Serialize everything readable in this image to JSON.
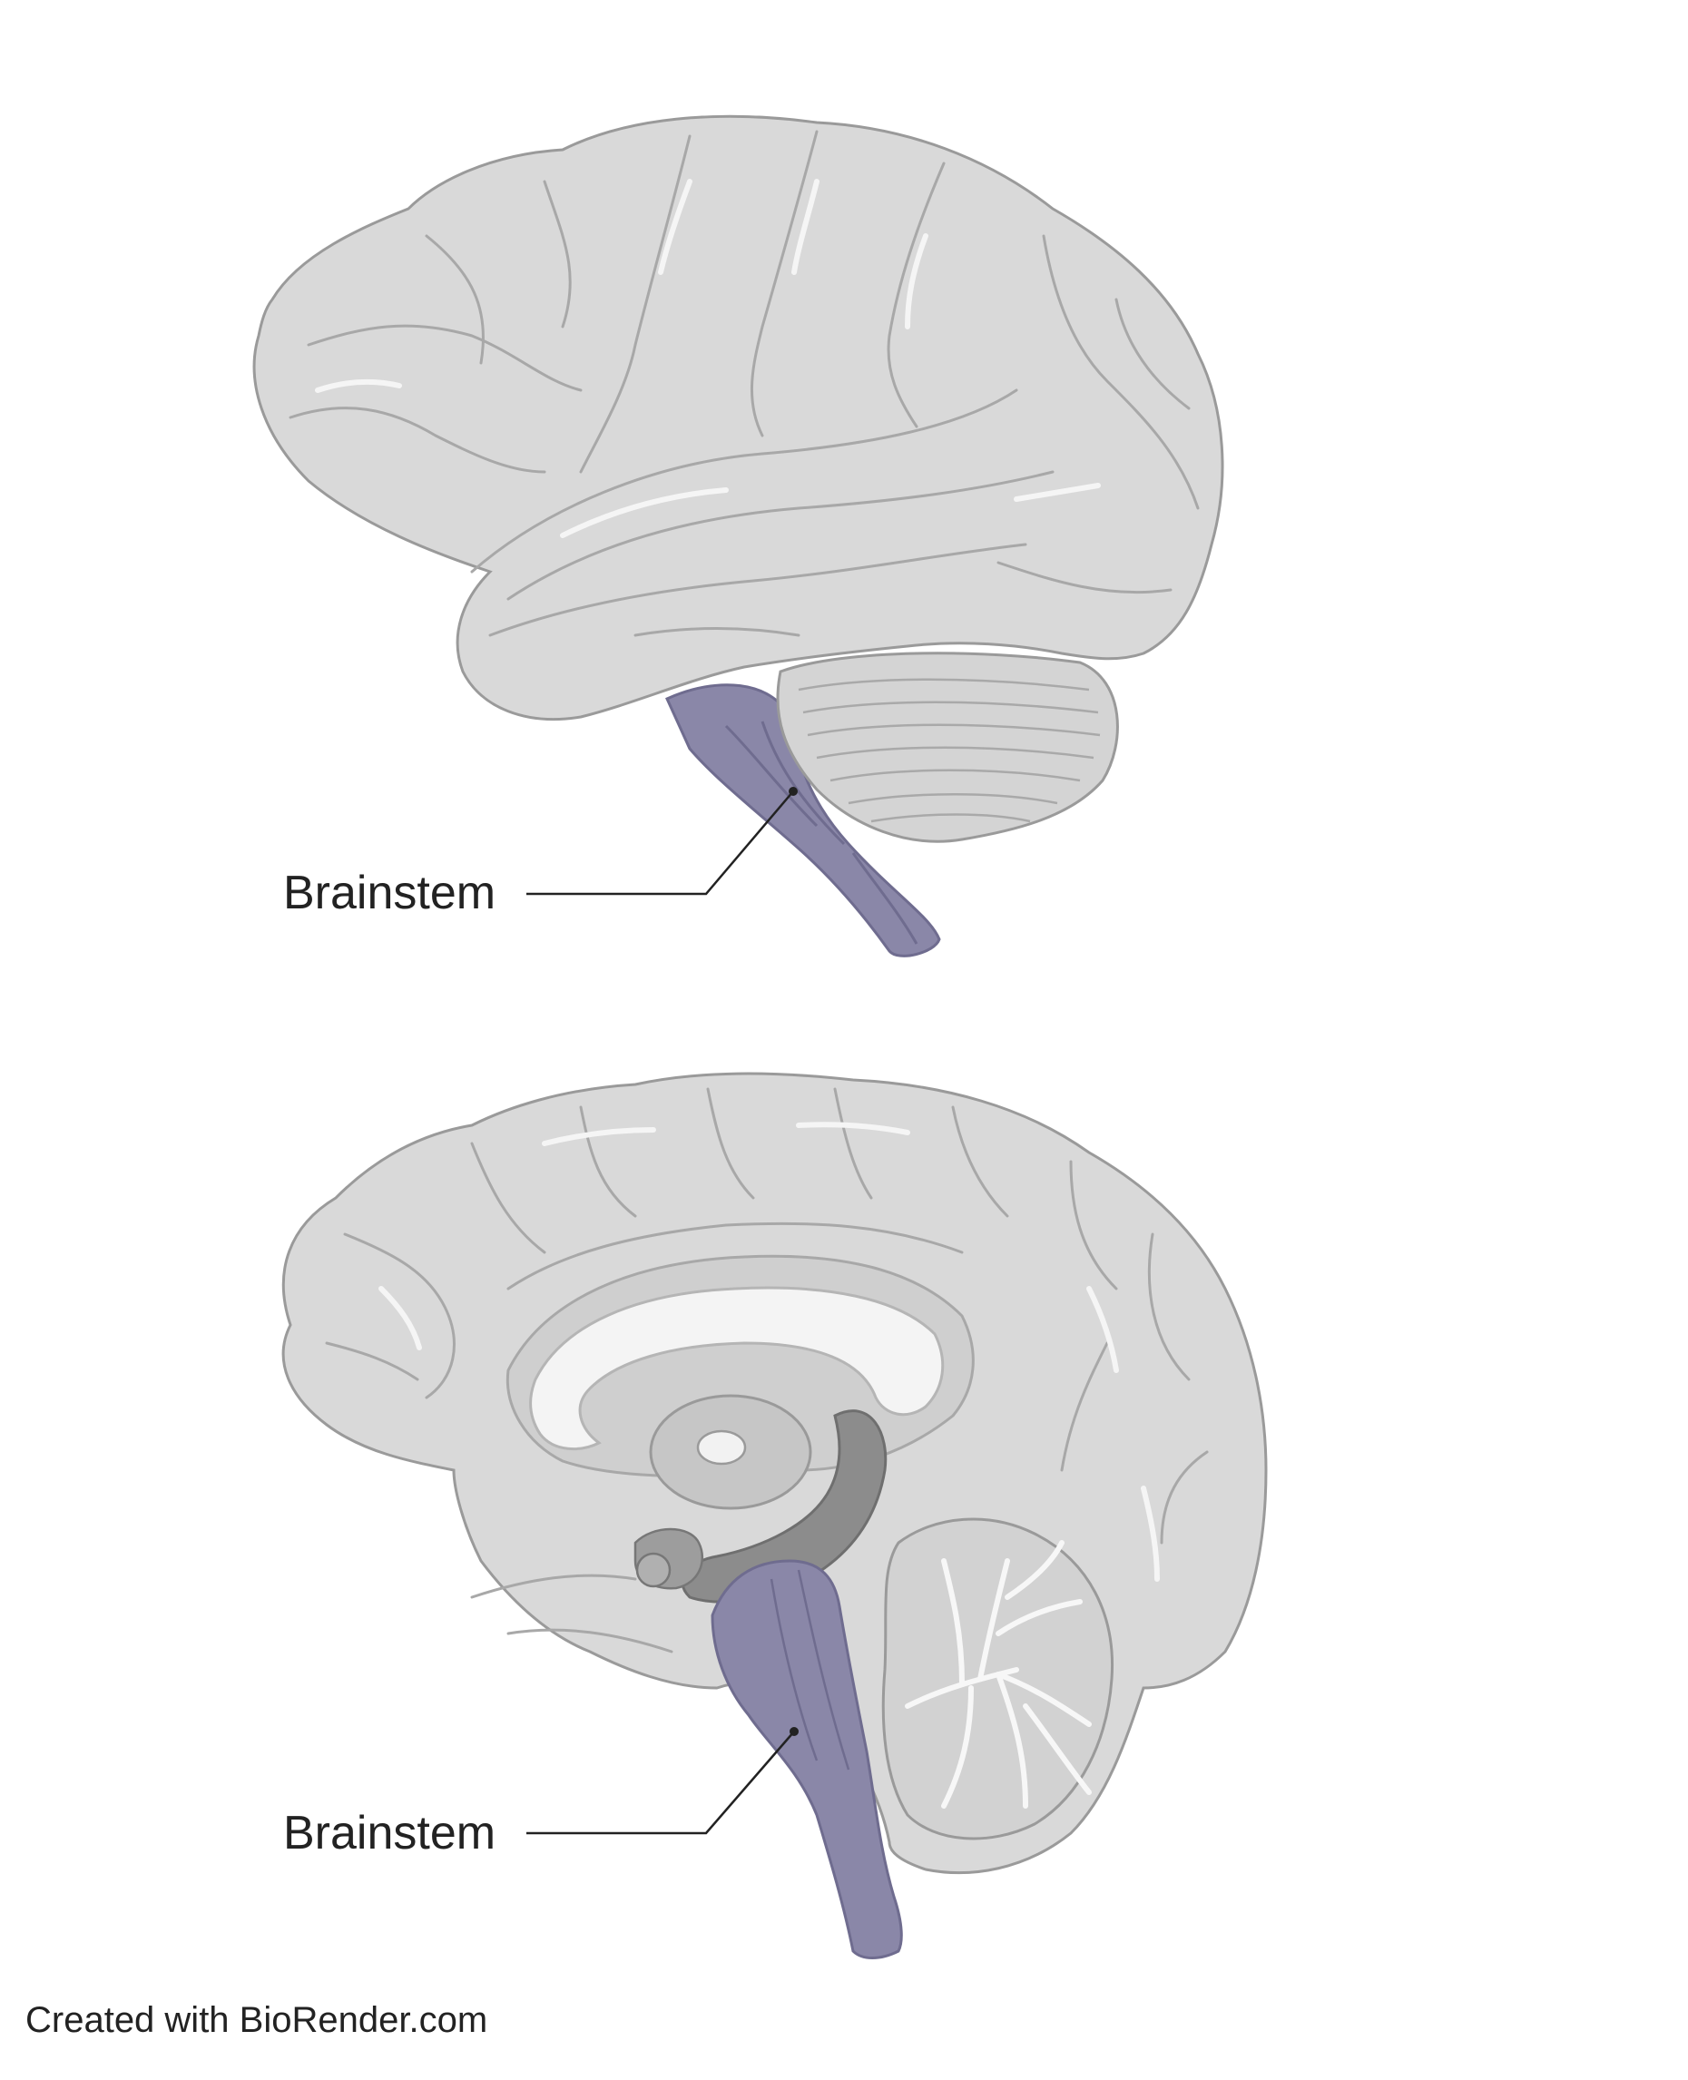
{
  "labels": {
    "lateral_brainstem": "Brainstem",
    "sagittal_brainstem": "Brainstem"
  },
  "credit": "Created with BioRender.com",
  "colors": {
    "cortex_fill": "#d9d9d9",
    "cortex_stroke": "#9a9a9a",
    "gyri_line": "#a8a8a8",
    "brainstem": "#8a87a8",
    "brainstem_dark": "#6f6c8f",
    "corpus_callosum": "#f4f4f4",
    "thalamus": "#c6c6c6",
    "deep_gray": "#8c8c8c",
    "leader_line": "#222222"
  },
  "icons": [
    "lateral-brain-illustration",
    "sagittal-brain-illustration"
  ]
}
